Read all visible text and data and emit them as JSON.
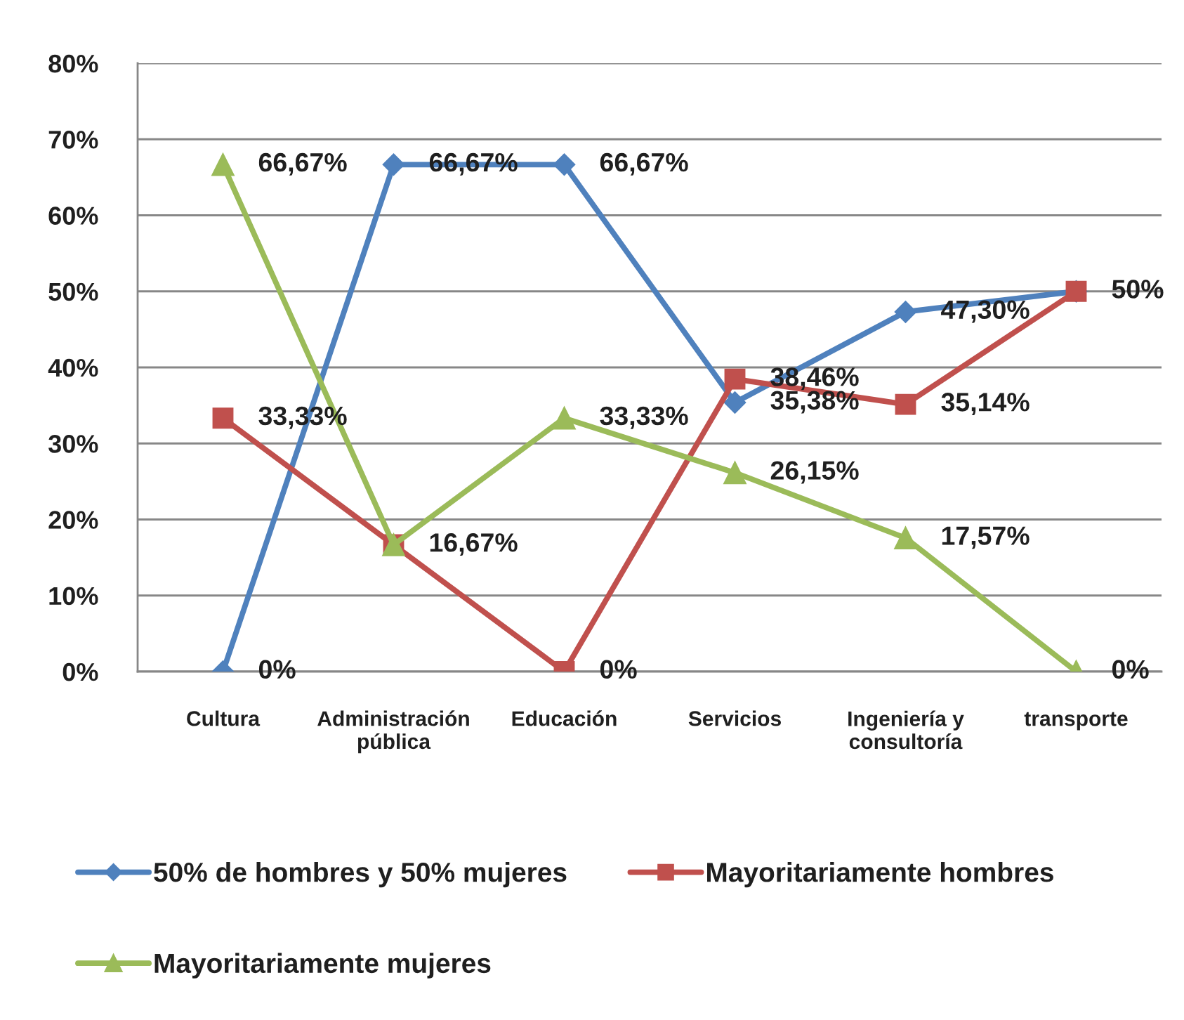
{
  "chart_data": {
    "type": "line",
    "categories": [
      "Cultura",
      "Administración\npública",
      "Educación",
      "Servicios",
      "Ingeniería y\nconsultoría",
      "transporte"
    ],
    "series": [
      {
        "name": "50% de hombres y 50% mujeres",
        "color": "#4f81bd",
        "marker": "diamond",
        "values": [
          0,
          66.67,
          66.67,
          35.38,
          47.3,
          50
        ],
        "value_labels": [
          "0%",
          "66,67%",
          "66,67%",
          "35,38%",
          "47,30%",
          null
        ]
      },
      {
        "name": "Mayoritariamente hombres",
        "color": "#c0504d",
        "marker": "square",
        "values": [
          33.33,
          16.67,
          0,
          38.46,
          35.14,
          50
        ],
        "value_labels": [
          "33,33%",
          null,
          "0%",
          "38,46%",
          "35,14%",
          "50%"
        ]
      },
      {
        "name": "Mayoritariamente mujeres",
        "color": "#9bbb59",
        "marker": "triangle",
        "values": [
          66.67,
          16.67,
          33.33,
          26.15,
          17.57,
          0
        ],
        "value_labels": [
          "66,67%",
          "16,67%",
          "33,33%",
          "26,15%",
          "17,57%",
          "0%"
        ]
      }
    ],
    "ylim": [
      0,
      80
    ],
    "yticks": [
      {
        "value": 0,
        "label": "0%"
      },
      {
        "value": 10,
        "label": "10%"
      },
      {
        "value": 20,
        "label": "20%"
      },
      {
        "value": 30,
        "label": "30%"
      },
      {
        "value": 40,
        "label": "40%"
      },
      {
        "value": 50,
        "label": "50%"
      },
      {
        "value": 60,
        "label": "60%"
      },
      {
        "value": 70,
        "label": "70%"
      },
      {
        "value": 80,
        "label": "80%"
      }
    ],
    "grid": "y",
    "legend": "bottom",
    "line_style": "solid"
  }
}
